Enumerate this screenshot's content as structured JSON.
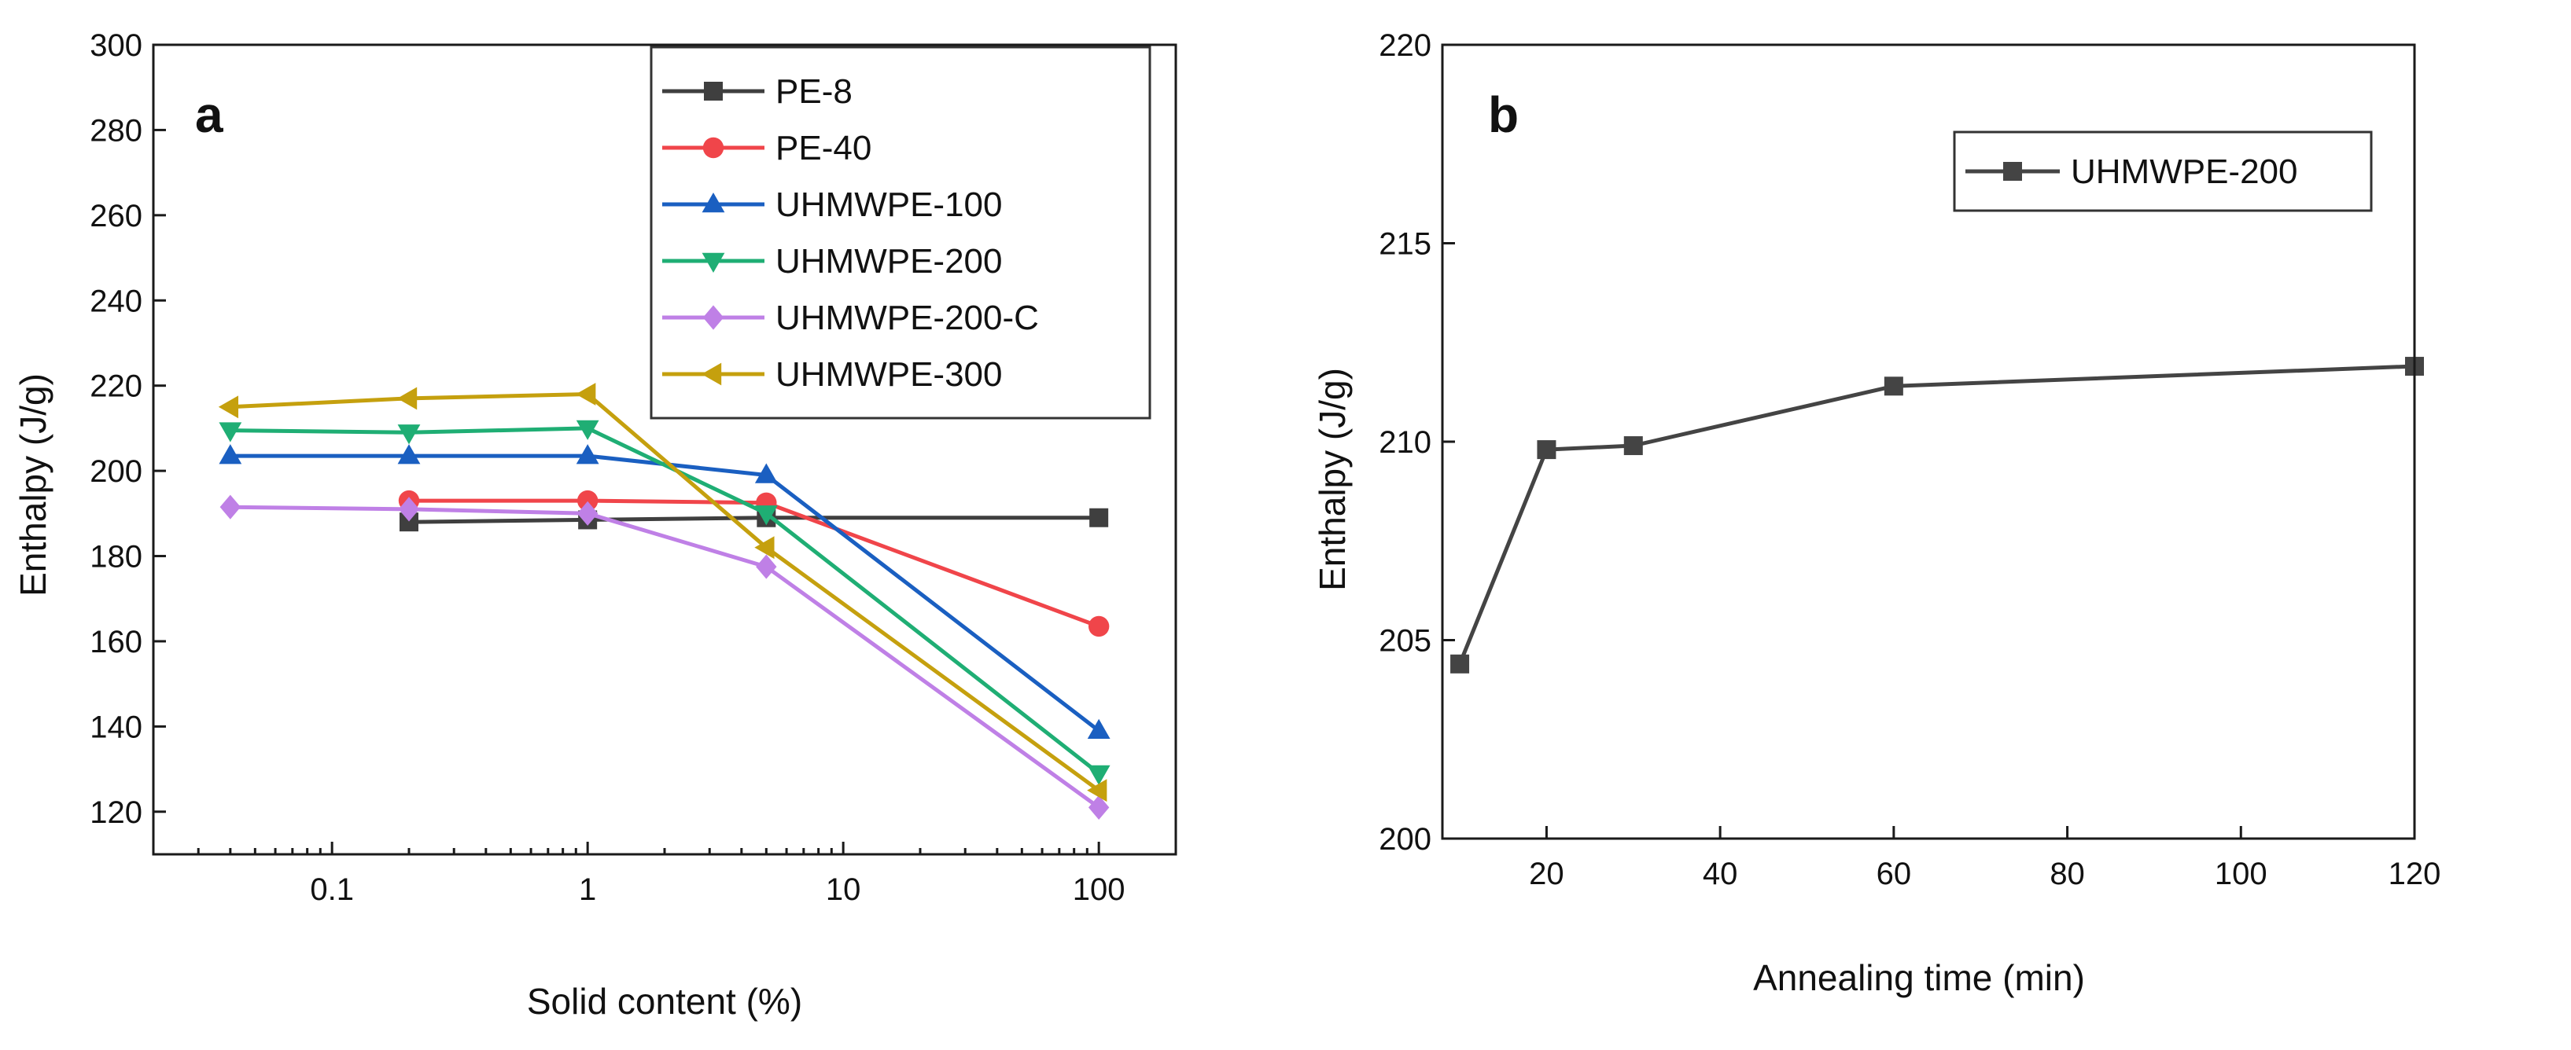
{
  "chart_data": [
    {
      "type": "line",
      "panel_label": "a",
      "xlabel": "Solid content (%)",
      "ylabel": "Enthalpy (J/g)",
      "xscale": "log",
      "xlim": [
        0.02,
        200
      ],
      "ylim": [
        110,
        300
      ],
      "xticks": [
        0.1,
        1,
        10,
        100
      ],
      "xtick_labels": [
        "0.1",
        "1",
        "10",
        "100"
      ],
      "yticks": [
        120,
        140,
        160,
        180,
        200,
        220,
        240,
        260,
        280,
        300
      ],
      "ytick_labels": [
        "120",
        "140",
        "160",
        "180",
        "200",
        "220",
        "240",
        "260",
        "280",
        "300"
      ],
      "grid": false,
      "legend_position": "top-right",
      "series": [
        {
          "name": "PE-8",
          "color": "#3f3f3f",
          "marker": "square",
          "x": [
            0.2,
            1,
            5,
            100
          ],
          "y": [
            188,
            188.5,
            189,
            189
          ]
        },
        {
          "name": "PE-40",
          "color": "#f0454a",
          "marker": "circle",
          "x": [
            0.2,
            1,
            5,
            100
          ],
          "y": [
            193,
            193,
            192.5,
            163.5
          ]
        },
        {
          "name": "UHMWPE-100",
          "color": "#1a5fc1",
          "marker": "triangle-up",
          "x": [
            0.04,
            0.2,
            1,
            5,
            100
          ],
          "y": [
            203.5,
            203.5,
            203.5,
            199,
            139
          ]
        },
        {
          "name": "UHMWPE-200",
          "color": "#1fae74",
          "marker": "triangle-down",
          "x": [
            0.04,
            0.2,
            1,
            5,
            100
          ],
          "y": [
            209.5,
            209,
            210,
            190,
            129
          ]
        },
        {
          "name": "UHMWPE-200-C",
          "color": "#bf80e6",
          "marker": "diamond",
          "x": [
            0.04,
            0.2,
            1,
            5,
            100
          ],
          "y": [
            191.5,
            191,
            190,
            177.5,
            121
          ]
        },
        {
          "name": "UHMWPE-300",
          "color": "#c5a00e",
          "marker": "triangle-left",
          "x": [
            0.04,
            0.2,
            1,
            5,
            100
          ],
          "y": [
            215,
            217,
            218,
            182,
            125
          ]
        }
      ]
    },
    {
      "type": "line",
      "panel_label": "b",
      "xlabel": "Annealing time  (min)",
      "ylabel": "Enthalpy (J/g)",
      "xlim": [
        8,
        120
      ],
      "ylim": [
        200,
        220
      ],
      "xticks": [
        20,
        40,
        60,
        80,
        100,
        120
      ],
      "xtick_labels": [
        "20",
        "40",
        "60",
        "80",
        "100",
        "120"
      ],
      "yticks": [
        200,
        205,
        210,
        215,
        220
      ],
      "ytick_labels": [
        "200",
        "205",
        "210",
        "215",
        "220"
      ],
      "grid": false,
      "legend_position": "top-right",
      "series": [
        {
          "name": "UHMWPE-200",
          "color": "#444444",
          "marker": "square",
          "x": [
            10,
            20,
            30,
            60,
            120
          ],
          "y": [
            204.4,
            209.8,
            209.9,
            211.4,
            211.9
          ]
        }
      ]
    }
  ]
}
